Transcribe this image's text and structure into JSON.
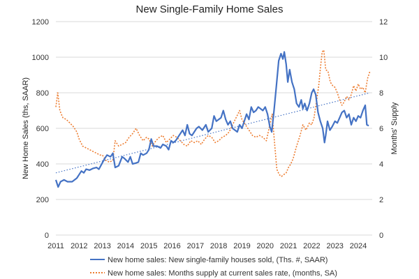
{
  "chart_data": {
    "type": "line",
    "title": "New Single-Family Home Sales",
    "xlabel": "",
    "ylabel": "New Home Sales (ths, SAAR)",
    "y2label": "Months' Supply",
    "xlim": [
      2011,
      2024.6
    ],
    "ylim": [
      0,
      1200
    ],
    "y2lim": [
      0,
      12
    ],
    "x_ticks": [
      "2011",
      "2012",
      "2013",
      "2014",
      "2015",
      "2016",
      "2017",
      "2018",
      "2019",
      "2020",
      "2021",
      "2022",
      "2023",
      "2024"
    ],
    "y_ticks": [
      "0",
      "200",
      "400",
      "600",
      "800",
      "1000",
      "1200"
    ],
    "y2_ticks": [
      "0",
      "2",
      "4",
      "6",
      "8",
      "10",
      "12"
    ],
    "grid": true,
    "legend_position": "bottom",
    "series": [
      {
        "name": "New home sales: New single-family houses sold, (Ths. #, SAAR)",
        "axis": "left",
        "style": "solid",
        "color": "#4472c4",
        "points": [
          [
            2011.0,
            310
          ],
          [
            2011.1,
            270
          ],
          [
            2011.2,
            300
          ],
          [
            2011.35,
            310
          ],
          [
            2011.5,
            300
          ],
          [
            2011.7,
            300
          ],
          [
            2011.9,
            320
          ],
          [
            2012.0,
            340
          ],
          [
            2012.1,
            360
          ],
          [
            2012.2,
            350
          ],
          [
            2012.3,
            370
          ],
          [
            2012.45,
            365
          ],
          [
            2012.6,
            375
          ],
          [
            2012.75,
            380
          ],
          [
            2012.85,
            370
          ],
          [
            2012.95,
            395
          ],
          [
            2013.1,
            430
          ],
          [
            2013.2,
            450
          ],
          [
            2013.35,
            440
          ],
          [
            2013.45,
            460
          ],
          [
            2013.55,
            380
          ],
          [
            2013.7,
            390
          ],
          [
            2013.85,
            440
          ],
          [
            2013.95,
            430
          ],
          [
            2014.1,
            410
          ],
          [
            2014.2,
            440
          ],
          [
            2014.3,
            400
          ],
          [
            2014.45,
            405
          ],
          [
            2014.55,
            410
          ],
          [
            2014.65,
            460
          ],
          [
            2014.75,
            450
          ],
          [
            2014.9,
            460
          ],
          [
            2015.0,
            480
          ],
          [
            2015.1,
            540
          ],
          [
            2015.2,
            500
          ],
          [
            2015.35,
            500
          ],
          [
            2015.5,
            490
          ],
          [
            2015.6,
            510
          ],
          [
            2015.75,
            500
          ],
          [
            2015.85,
            480
          ],
          [
            2015.95,
            530
          ],
          [
            2016.05,
            520
          ],
          [
            2016.15,
            530
          ],
          [
            2016.3,
            560
          ],
          [
            2016.45,
            590
          ],
          [
            2016.55,
            560
          ],
          [
            2016.65,
            620
          ],
          [
            2016.75,
            570
          ],
          [
            2016.85,
            560
          ],
          [
            2016.95,
            580
          ],
          [
            2017.05,
            600
          ],
          [
            2017.15,
            610
          ],
          [
            2017.3,
            590
          ],
          [
            2017.45,
            620
          ],
          [
            2017.55,
            580
          ],
          [
            2017.7,
            600
          ],
          [
            2017.8,
            670
          ],
          [
            2017.9,
            640
          ],
          [
            2018.0,
            650
          ],
          [
            2018.1,
            660
          ],
          [
            2018.2,
            700
          ],
          [
            2018.3,
            650
          ],
          [
            2018.4,
            620
          ],
          [
            2018.5,
            640
          ],
          [
            2018.6,
            600
          ],
          [
            2018.7,
            590
          ],
          [
            2018.8,
            580
          ],
          [
            2018.9,
            620
          ],
          [
            2019.0,
            600
          ],
          [
            2019.1,
            640
          ],
          [
            2019.2,
            680
          ],
          [
            2019.3,
            650
          ],
          [
            2019.4,
            720
          ],
          [
            2019.5,
            690
          ],
          [
            2019.6,
            700
          ],
          [
            2019.7,
            720
          ],
          [
            2019.8,
            710
          ],
          [
            2019.9,
            700
          ],
          [
            2020.0,
            720
          ],
          [
            2020.1,
            680
          ],
          [
            2020.2,
            610
          ],
          [
            2020.28,
            580
          ],
          [
            2020.38,
            700
          ],
          [
            2020.48,
            840
          ],
          [
            2020.58,
            980
          ],
          [
            2020.68,
            1020
          ],
          [
            2020.76,
            990
          ],
          [
            2020.82,
            1030
          ],
          [
            2020.9,
            960
          ],
          [
            2020.97,
            860
          ],
          [
            2021.05,
            930
          ],
          [
            2021.15,
            860
          ],
          [
            2021.25,
            820
          ],
          [
            2021.35,
            740
          ],
          [
            2021.45,
            720
          ],
          [
            2021.55,
            760
          ],
          [
            2021.62,
            710
          ],
          [
            2021.7,
            740
          ],
          [
            2021.8,
            700
          ],
          [
            2021.9,
            740
          ],
          [
            2022.0,
            800
          ],
          [
            2022.08,
            820
          ],
          [
            2022.17,
            790
          ],
          [
            2022.27,
            690
          ],
          [
            2022.37,
            640
          ],
          [
            2022.47,
            600
          ],
          [
            2022.55,
            520
          ],
          [
            2022.6,
            560
          ],
          [
            2022.68,
            640
          ],
          [
            2022.78,
            590
          ],
          [
            2022.88,
            610
          ],
          [
            2023.0,
            640
          ],
          [
            2023.1,
            630
          ],
          [
            2023.2,
            660
          ],
          [
            2023.3,
            690
          ],
          [
            2023.4,
            700
          ],
          [
            2023.5,
            660
          ],
          [
            2023.6,
            680
          ],
          [
            2023.7,
            620
          ],
          [
            2023.8,
            660
          ],
          [
            2023.9,
            640
          ],
          [
            2024.0,
            670
          ],
          [
            2024.1,
            660
          ],
          [
            2024.2,
            700
          ],
          [
            2024.3,
            730
          ],
          [
            2024.37,
            620
          ],
          [
            2024.45,
            615
          ]
        ]
      },
      {
        "name": "New home sales: Months supply at current sales rate, (months, SA)",
        "axis": "right",
        "style": "dotted",
        "color": "#ed7d31",
        "points": [
          [
            2011.0,
            7.2
          ],
          [
            2011.08,
            8.0
          ],
          [
            2011.17,
            7.0
          ],
          [
            2011.3,
            6.6
          ],
          [
            2011.45,
            6.5
          ],
          [
            2011.6,
            6.3
          ],
          [
            2011.75,
            6.1
          ],
          [
            2011.9,
            5.8
          ],
          [
            2012.0,
            5.4
          ],
          [
            2012.15,
            5.0
          ],
          [
            2012.3,
            4.9
          ],
          [
            2012.45,
            4.8
          ],
          [
            2012.6,
            4.7
          ],
          [
            2012.75,
            4.6
          ],
          [
            2012.9,
            4.5
          ],
          [
            2013.0,
            4.5
          ],
          [
            2013.15,
            4.2
          ],
          [
            2013.3,
            4.1
          ],
          [
            2013.45,
            4.2
          ],
          [
            2013.55,
            5.3
          ],
          [
            2013.7,
            5.0
          ],
          [
            2013.85,
            5.1
          ],
          [
            2014.0,
            5.2
          ],
          [
            2014.15,
            5.5
          ],
          [
            2014.3,
            5.7
          ],
          [
            2014.45,
            6.0
          ],
          [
            2014.6,
            5.6
          ],
          [
            2014.75,
            5.3
          ],
          [
            2014.9,
            5.5
          ],
          [
            2015.0,
            5.4
          ],
          [
            2015.15,
            5.0
          ],
          [
            2015.3,
            5.3
          ],
          [
            2015.45,
            5.5
          ],
          [
            2015.6,
            5.6
          ],
          [
            2015.75,
            5.2
          ],
          [
            2015.9,
            5.4
          ],
          [
            2016.05,
            5.6
          ],
          [
            2016.2,
            5.5
          ],
          [
            2016.35,
            5.3
          ],
          [
            2016.5,
            5.1
          ],
          [
            2016.65,
            5.0
          ],
          [
            2016.8,
            5.3
          ],
          [
            2016.95,
            5.2
          ],
          [
            2017.1,
            5.3
          ],
          [
            2017.25,
            5.1
          ],
          [
            2017.4,
            5.4
          ],
          [
            2017.55,
            5.6
          ],
          [
            2017.7,
            5.5
          ],
          [
            2017.85,
            5.2
          ],
          [
            2018.0,
            5.3
          ],
          [
            2018.15,
            5.5
          ],
          [
            2018.3,
            5.6
          ],
          [
            2018.45,
            5.8
          ],
          [
            2018.6,
            6.2
          ],
          [
            2018.75,
            6.6
          ],
          [
            2018.9,
            7.0
          ],
          [
            2019.0,
            6.5
          ],
          [
            2019.15,
            6.2
          ],
          [
            2019.3,
            5.9
          ],
          [
            2019.45,
            5.6
          ],
          [
            2019.6,
            5.5
          ],
          [
            2019.75,
            5.6
          ],
          [
            2019.9,
            5.5
          ],
          [
            2020.05,
            5.3
          ],
          [
            2020.2,
            6.2
          ],
          [
            2020.3,
            6.8
          ],
          [
            2020.4,
            5.2
          ],
          [
            2020.5,
            3.7
          ],
          [
            2020.6,
            3.4
          ],
          [
            2020.7,
            3.3
          ],
          [
            2020.8,
            3.4
          ],
          [
            2020.9,
            3.5
          ],
          [
            2021.0,
            3.8
          ],
          [
            2021.1,
            4.0
          ],
          [
            2021.2,
            4.3
          ],
          [
            2021.35,
            5.0
          ],
          [
            2021.5,
            5.6
          ],
          [
            2021.62,
            6.2
          ],
          [
            2021.75,
            5.9
          ],
          [
            2021.9,
            6.3
          ],
          [
            2022.0,
            6.2
          ],
          [
            2022.1,
            6.6
          ],
          [
            2022.2,
            7.5
          ],
          [
            2022.3,
            8.4
          ],
          [
            2022.38,
            9.5
          ],
          [
            2022.45,
            10.3
          ],
          [
            2022.52,
            10.4
          ],
          [
            2022.6,
            9.3
          ],
          [
            2022.7,
            9.2
          ],
          [
            2022.8,
            8.6
          ],
          [
            2022.9,
            8.4
          ],
          [
            2023.0,
            8.3
          ],
          [
            2023.1,
            8.0
          ],
          [
            2023.2,
            7.6
          ],
          [
            2023.3,
            7.3
          ],
          [
            2023.4,
            7.5
          ],
          [
            2023.5,
            7.8
          ],
          [
            2023.6,
            7.6
          ],
          [
            2023.7,
            7.9
          ],
          [
            2023.8,
            8.4
          ],
          [
            2023.9,
            8.1
          ],
          [
            2024.0,
            8.5
          ],
          [
            2024.1,
            8.2
          ],
          [
            2024.2,
            8.3
          ],
          [
            2024.3,
            8.0
          ],
          [
            2024.4,
            8.8
          ],
          [
            2024.5,
            9.2
          ]
        ]
      },
      {
        "name": "",
        "axis": "left",
        "style": "trendline",
        "color": "#4472c4",
        "points": [
          [
            2011.0,
            350
          ],
          [
            2024.5,
            800
          ]
        ]
      }
    ]
  }
}
